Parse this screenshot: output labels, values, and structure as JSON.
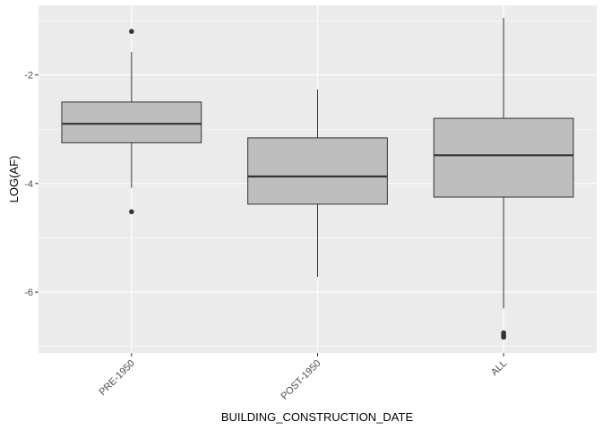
{
  "chart_data": {
    "type": "boxplot",
    "title": "",
    "xlabel": "BUILDING_CONSTRUCTION_DATE",
    "ylabel": "LOG(AF)",
    "categories": [
      "PRE-1950",
      "POST-1950",
      "ALL"
    ],
    "ylim": [
      -7.12,
      -0.72
    ],
    "yticks": [
      -6,
      -4,
      -2
    ],
    "ytick_labels": [
      "-6",
      "-4",
      "-2"
    ],
    "boxes": [
      {
        "category": "PRE-1950",
        "whisker_low": -4.08,
        "q1": -3.25,
        "median": -2.9,
        "q3": -2.5,
        "whisker_high": -1.58,
        "outliers": [
          -1.2,
          -4.52
        ]
      },
      {
        "category": "POST-1950",
        "whisker_low": -5.72,
        "q1": -4.38,
        "median": -3.87,
        "q3": -3.16,
        "whisker_high": -2.27,
        "outliers": []
      },
      {
        "category": "ALL",
        "whisker_low": -6.3,
        "q1": -4.25,
        "median": -3.48,
        "q3": -2.8,
        "whisker_high": -0.95,
        "outliers": [
          -6.75,
          -6.8,
          -6.83
        ]
      }
    ],
    "colors": {
      "panel": "#ebebeb",
      "grid_major": "#ffffff",
      "box_fill": "#bebebe",
      "box_line": "#333333"
    }
  }
}
